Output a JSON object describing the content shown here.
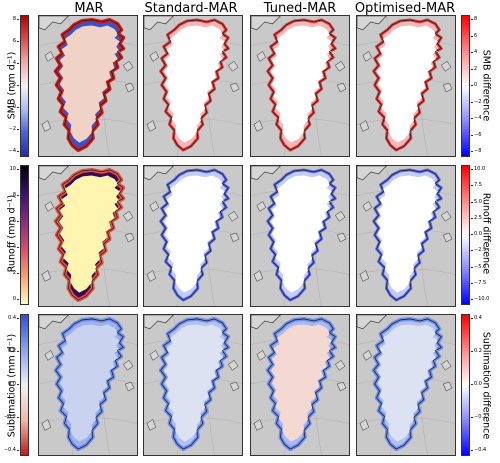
{
  "columns": [
    "MAR",
    "Standard-MAR",
    "Tuned-MAR",
    "Optimised-MAR"
  ],
  "rows": [
    {
      "id": "smb",
      "left_label": "SMB (mm d⁻¹)",
      "left_ticks": [
        "8",
        "6",
        "4",
        "2",
        "0",
        "−2",
        "−4"
      ],
      "right_label": "SMB difference",
      "right_ticks": [
        "8",
        "6",
        "4",
        "2",
        "0",
        "−2",
        "−4",
        "−6",
        "−8"
      ]
    },
    {
      "id": "runoff",
      "left_label": "Runoff (mm d⁻¹)",
      "left_ticks": [
        "10",
        "8",
        "6",
        "4",
        "2",
        "0"
      ],
      "right_label": "Runoff difference",
      "right_ticks": [
        "10.0",
        "7.5",
        "5.0",
        "2.5",
        "0.0",
        "−2.5",
        "−5.0",
        "−7.5",
        "−10.0"
      ]
    },
    {
      "id": "sublimation",
      "left_label": "Sublimation (mm d⁻¹)",
      "left_ticks": [
        "0.4",
        "0.2",
        "0.0",
        "−0.2",
        "−0.4"
      ],
      "right_label": "Sublimation difference",
      "right_ticks": [
        "0.4",
        "0.2",
        "0.0",
        "−0.2",
        "−0.4"
      ]
    }
  ],
  "colors": {
    "ocean": "#c9c9c9",
    "land": "#d6d6d6",
    "coast": "#222222",
    "smb_mar_fill": "#f1d2c6",
    "smb_mar_edge_pos": "#2f55d6",
    "smb_mar_edge_neg": "#d11b1b",
    "diff_white": "#ffffff",
    "diff_red": "#e63a3a",
    "diff_blue": "#5a6cf0",
    "runoff_fill": "#fff5b0",
    "runoff_edge": "#e8533d",
    "runoff_edge_dark": "#3a0b54",
    "sub_fill": "#dce2f2",
    "sub_edge": "#6f8ff0",
    "sub_tuned_fill": "#f4d9d3"
  }
}
